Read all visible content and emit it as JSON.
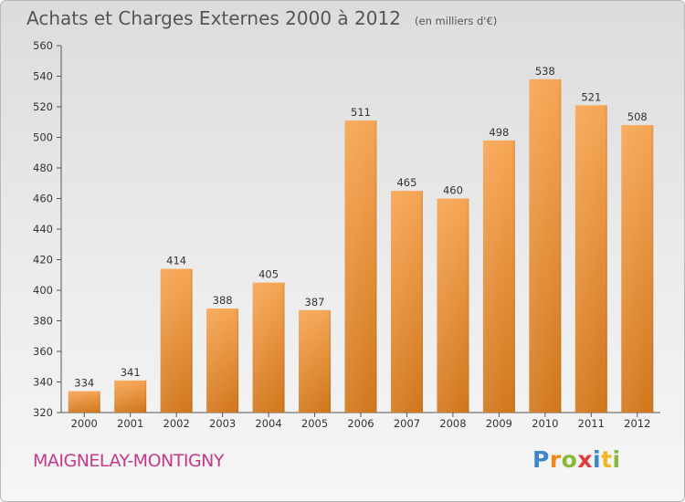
{
  "chart_data": {
    "type": "bar",
    "title": "Achats et Charges Externes 2000 à 2012",
    "subtitle": "(en milliers d'€)",
    "categories": [
      "2000",
      "2001",
      "2002",
      "2003",
      "2004",
      "2005",
      "2006",
      "2007",
      "2008",
      "2009",
      "2010",
      "2011",
      "2012"
    ],
    "values": [
      334,
      341,
      414,
      388,
      405,
      387,
      511,
      465,
      460,
      498,
      538,
      521,
      508
    ],
    "value_labels": [
      "334",
      "341",
      "414",
      "388",
      "405",
      "387",
      "511",
      "465",
      "460",
      "498",
      "538",
      "521",
      "508"
    ],
    "ylim": [
      320,
      560
    ],
    "yticks": [
      "320",
      "340",
      "360",
      "380",
      "400",
      "420",
      "440",
      "460",
      "480",
      "500",
      "520",
      "540",
      "560"
    ],
    "ytick_values": [
      320,
      340,
      360,
      380,
      400,
      420,
      440,
      460,
      480,
      500,
      520,
      540,
      560
    ],
    "xlabel": "",
    "ylabel": "",
    "grid": false,
    "bar_color_top": "#f6a553",
    "bar_color_bottom": "#d2771c"
  },
  "footer": {
    "place": "MAIGNELAY-MONTIGNY",
    "brand_letters": [
      "P",
      "r",
      "o",
      "x",
      "i",
      "t",
      "i"
    ],
    "brand_colors": [
      "#3e86c8",
      "#f08a1c",
      "#8ab93a",
      "#e03a3a",
      "#3e86c8",
      "#f0b81c",
      "#8ab93a"
    ]
  }
}
